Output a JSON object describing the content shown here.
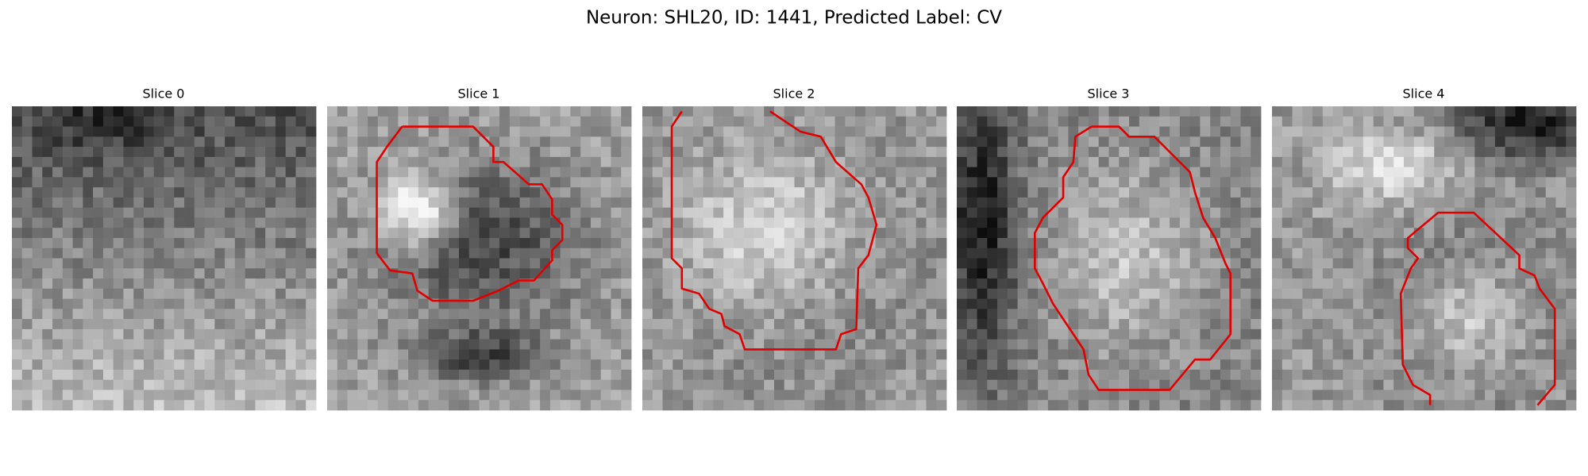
{
  "title": "Neuron: SHL20, ID: 1441, Predicted Label: CV",
  "panels": [
    {
      "title": "Slice 0"
    },
    {
      "title": "Slice 1"
    },
    {
      "title": "Slice 2"
    },
    {
      "title": "Slice 3"
    },
    {
      "title": "Slice 4"
    }
  ]
}
